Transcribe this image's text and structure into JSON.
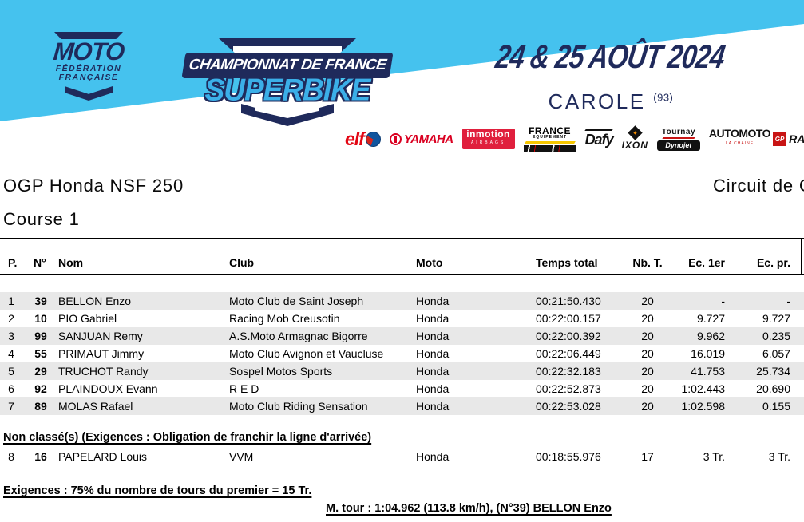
{
  "banner": {
    "bg_color": "#45C2EE",
    "navy_color": "#1F2A5B",
    "ffm_logo": {
      "word": "MOTO",
      "sub1": "FÉDÉRATION",
      "sub2": "FRANÇAISE"
    },
    "cdf_logo": {
      "line1": "CHAMPIONNAT DE FRANCE",
      "line2": "SUPERBIKE",
      "accent_color": "#3BAFE8"
    },
    "event_date": "24 & 25 AOÛT 2024",
    "venue": "CAROLE",
    "venue_dept": "(93)",
    "sponsors": {
      "elf": {
        "label": "elf"
      },
      "yamaha": {
        "label": "YAMAHA"
      },
      "inmotion": {
        "label": "inmotion",
        "sub": "AIRBAGS"
      },
      "france_equipement": {
        "label": "FRANCE",
        "sub": "EQUIPEMENT"
      },
      "dafy": {
        "label": "Dafy"
      },
      "ixon": {
        "label": "IXON"
      },
      "tournay_dynojet": {
        "label": "Tournay",
        "sub": "Dynojet"
      },
      "automoto": {
        "label": "AUTOMOTO",
        "sub": "LA CHAINE",
        "gp": "GP",
        "racing": "RA"
      }
    }
  },
  "titles": {
    "category": "OGP Honda NSF 250",
    "session": "Course 1",
    "circuit": "Circuit de C"
  },
  "table": {
    "stripe_color": "#E8E8E8",
    "columns": [
      "P.",
      "N°",
      "Nom",
      "Club",
      "Moto",
      "Temps total",
      "Nb. T.",
      "Ec. 1er",
      "Ec. pr."
    ],
    "rows": [
      {
        "pos": "1",
        "num": "39",
        "name": "BELLON Enzo",
        "club": "Moto Club de Saint Joseph",
        "moto": "Honda",
        "time": "00:21:50.430",
        "laps": "20",
        "gap_first": "-",
        "gap_prev": "-"
      },
      {
        "pos": "2",
        "num": "10",
        "name": "PIO Gabriel",
        "club": "Racing Mob Creusotin",
        "moto": "Honda",
        "time": "00:22:00.157",
        "laps": "20",
        "gap_first": "9.727",
        "gap_prev": "9.727"
      },
      {
        "pos": "3",
        "num": "99",
        "name": "SANJUAN Remy",
        "club": "A.S.Moto Armagnac Bigorre",
        "moto": "Honda",
        "time": "00:22:00.392",
        "laps": "20",
        "gap_first": "9.962",
        "gap_prev": "0.235"
      },
      {
        "pos": "4",
        "num": "55",
        "name": "PRIMAUT Jimmy",
        "club": "Moto Club Avignon et Vaucluse",
        "moto": "Honda",
        "time": "00:22:06.449",
        "laps": "20",
        "gap_first": "16.019",
        "gap_prev": "6.057"
      },
      {
        "pos": "5",
        "num": "29",
        "name": "TRUCHOT Randy",
        "club": "Sospel Motos Sports",
        "moto": "Honda",
        "time": "00:22:32.183",
        "laps": "20",
        "gap_first": "41.753",
        "gap_prev": "25.734"
      },
      {
        "pos": "6",
        "num": "92",
        "name": "PLAINDOUX Evann",
        "club": "R E D",
        "moto": "Honda",
        "time": "00:22:52.873",
        "laps": "20",
        "gap_first": "1:02.443",
        "gap_prev": "20.690"
      },
      {
        "pos": "7",
        "num": "89",
        "name": "MOLAS Rafael",
        "club": "Moto Club Riding Sensation",
        "moto": "Honda",
        "time": "00:22:53.028",
        "laps": "20",
        "gap_first": "1:02.598",
        "gap_prev": "0.155"
      }
    ],
    "unclassified_heading": "Non classé(s) (Exigences : Obligation de franchir la ligne d'arrivée)",
    "unclassified_rows": [
      {
        "pos": "8",
        "num": "16",
        "name": "PAPELARD Louis",
        "club": "VVM",
        "moto": "Honda",
        "time": "00:18:55.976",
        "laps": "17",
        "gap_first": "3 Tr.",
        "gap_prev": "3 Tr."
      }
    ]
  },
  "footer": {
    "requirements": "Exigences : 75% du nombre de tours du premier = 15 Tr.",
    "best_lap": "M. tour : 1:04.962 (113.8 km/h), (N°39) BELLON Enzo"
  }
}
